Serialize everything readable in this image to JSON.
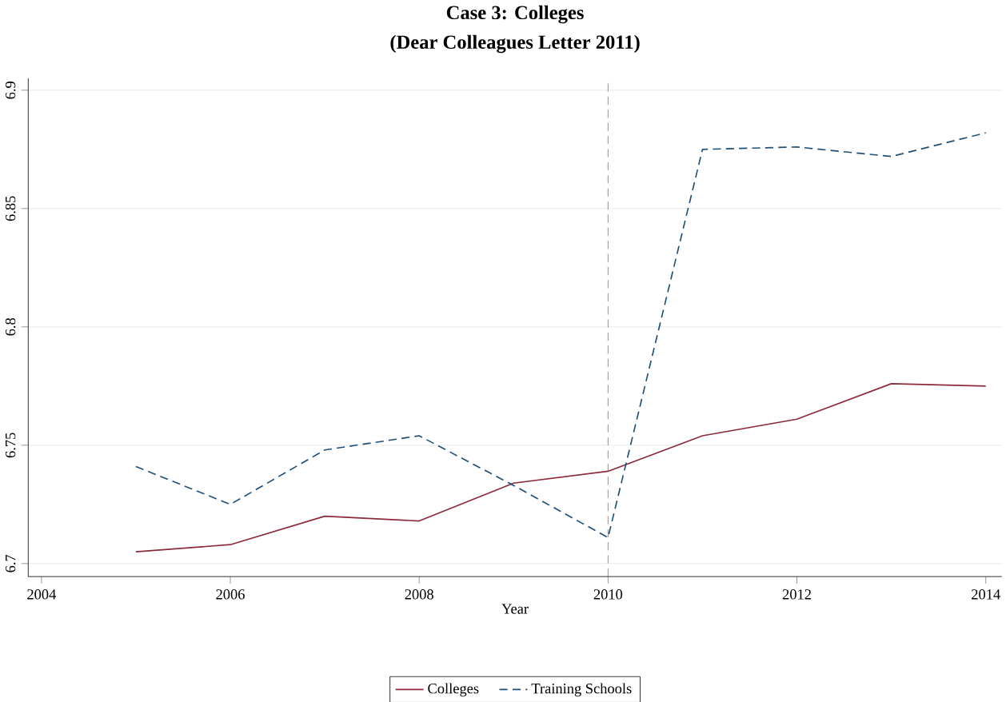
{
  "chart_data": {
    "type": "line",
    "title": "Case 3: Colleges",
    "subtitle": "(Dear Colleagues Letter 2011)",
    "xlabel": "Year",
    "x": [
      2005,
      2006,
      2007,
      2008,
      2009,
      2010,
      2011,
      2012,
      2013,
      2014
    ],
    "series": [
      {
        "name": "Colleges",
        "color": "#8b2a3a",
        "line_style": "solid",
        "values": [
          6.705,
          6.708,
          6.72,
          6.718,
          6.734,
          6.739,
          6.754,
          6.761,
          6.776,
          6.775
        ]
      },
      {
        "name": "Training Schools",
        "color": "#1f4e79",
        "line_style": "dashed",
        "values": [
          6.741,
          6.725,
          6.748,
          6.754,
          6.733,
          6.711,
          6.875,
          6.876,
          6.872,
          6.882
        ]
      }
    ],
    "xlim": [
      2003.86,
      2014.17
    ],
    "ylim": [
      6.6945,
      6.905
    ],
    "xticks": [
      2004,
      2006,
      2008,
      2010,
      2012,
      2014
    ],
    "yticks": [
      6.7,
      6.75,
      6.8,
      6.85,
      6.9
    ],
    "ref_lines": [
      {
        "axis": "x",
        "value": 2010,
        "color": "#707070",
        "line_style": "dashed"
      }
    ],
    "grid": "y",
    "legend": "bottom",
    "marker": "none"
  }
}
